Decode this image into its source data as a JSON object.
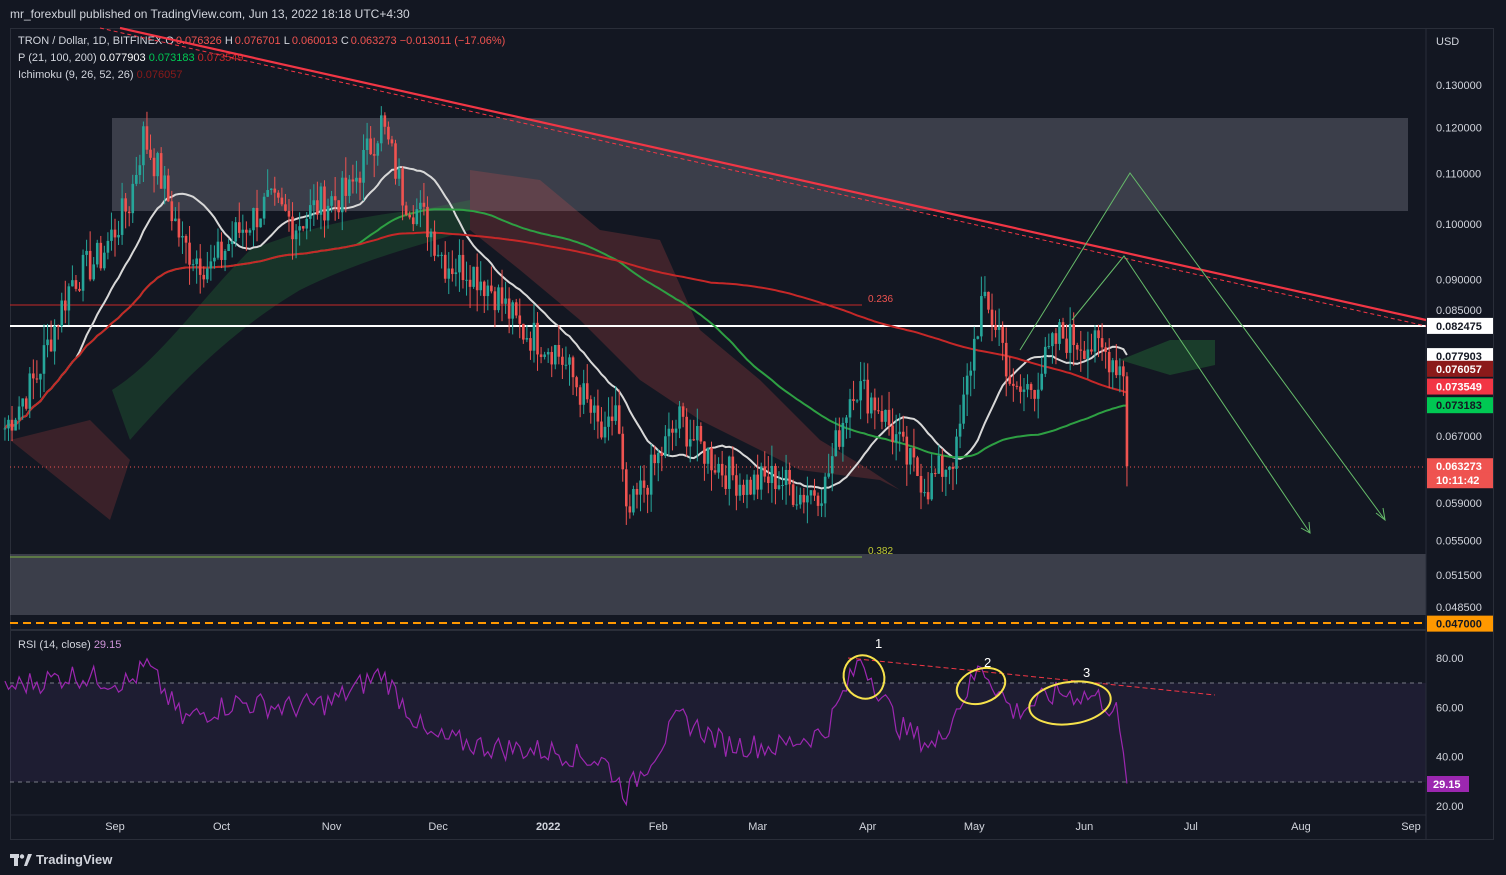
{
  "header": {
    "published": "mr_forexbull published on TradingView.com, Jun 13, 2022 18:18 UTC+4:30"
  },
  "legend": {
    "symbol_line": {
      "name": "TRON / Dollar, 1D, BITFINEX",
      "o_label": "O",
      "o_value": "0.076326",
      "h_label": "H",
      "h_value": "0.076701",
      "l_label": "L",
      "l_value": "0.060013",
      "c_label": "C",
      "c_value": "0.063273",
      "change": "−0.013011 (−17.06%)"
    },
    "ma_line": {
      "name": "P (21, 100, 200)",
      "v1": "0.077903",
      "v2": "0.073183",
      "v3": "0.073549"
    },
    "ichimoku_line": {
      "name": "Ichimoku (9, 26, 52, 26)",
      "v1": "0.076057"
    },
    "rsi_line": {
      "name": "RSI (14, close)",
      "v1": "29.15"
    }
  },
  "colors": {
    "background": "#131722",
    "grid": "#1e222d",
    "up": "#26a69a",
    "down": "#ef5350",
    "ma21": "#d8d8d8",
    "ma100": "#2ea043",
    "ma200": "#c62828",
    "trendline": "#f23645",
    "rsi": "#9c27b0",
    "zone": "rgba(120,123,134,0.42)",
    "accent_orange": "#ff9800",
    "annotation_yellow": "#f7e24b"
  },
  "price_axis": {
    "currency": "USD",
    "ticks": [
      "0.130000",
      "0.120000",
      "0.110000",
      "0.100000",
      "0.090000",
      "0.085000",
      "0.067000",
      "0.059000",
      "0.055000",
      "0.051500",
      "0.048500"
    ],
    "labels": [
      {
        "text": "0.082475",
        "bg": "#ffffff",
        "fg": "#131722"
      },
      {
        "text": "0.077903",
        "bg": "#ffffff",
        "fg": "#131722"
      },
      {
        "text": "0.076057",
        "bg": "#8b1a1a",
        "fg": "#ffffff"
      },
      {
        "text": "0.073549",
        "bg": "#f23645",
        "fg": "#ffffff"
      },
      {
        "text": "0.073183",
        "bg": "#00c853",
        "fg": "#131722"
      },
      {
        "text": "0.063273",
        "bg": "#ef5350",
        "fg": "#ffffff"
      },
      {
        "text": "10:11:42",
        "bg": "#ef5350",
        "fg": "#ffffff"
      },
      {
        "text": "0.047000",
        "bg": "#ff9800",
        "fg": "#131722"
      }
    ]
  },
  "rsi_axis": {
    "ticks": [
      "80.00",
      "60.00",
      "40.00",
      "20.00"
    ],
    "current": "29.15"
  },
  "time_axis": {
    "labels": [
      "Sep",
      "Oct",
      "Nov",
      "Dec",
      "2022",
      "Feb",
      "Mar",
      "Apr",
      "May",
      "Jun",
      "Jul",
      "Aug",
      "Sep"
    ]
  },
  "fib": {
    "upper": "0.236",
    "lower": "0.382"
  },
  "annotations": {
    "rsi_points": [
      "1",
      "2",
      "3"
    ]
  },
  "footer": {
    "brand": "TradingView"
  },
  "chart_data": {
    "type": "line",
    "title": "TRON / Dollar, 1D, BITFINEX",
    "ylabel": "USD",
    "ylim": [
      0.046,
      0.136
    ],
    "grid": true,
    "series": [
      {
        "name": "TRON / Dollar",
        "points": [
          [
            "2021-08-01",
            0.068
          ],
          [
            "2021-08-10",
            0.075
          ],
          [
            "2021-08-20",
            0.09
          ],
          [
            "2021-08-28",
            0.094
          ],
          [
            "2021-09-05",
            0.104
          ],
          [
            "2021-09-09",
            0.118
          ],
          [
            "2021-09-13",
            0.111
          ],
          [
            "2021-09-20",
            0.096
          ],
          [
            "2021-09-28",
            0.092
          ],
          [
            "2021-10-05",
            0.098
          ],
          [
            "2021-10-14",
            0.104
          ],
          [
            "2021-10-22",
            0.1
          ],
          [
            "2021-10-29",
            0.104
          ],
          [
            "2021-11-06",
            0.106
          ],
          [
            "2021-11-15",
            0.121
          ],
          [
            "2021-11-21",
            0.106
          ],
          [
            "2021-11-28",
            0.1
          ],
          [
            "2021-12-03",
            0.093
          ],
          [
            "2021-12-10",
            0.092
          ],
          [
            "2021-12-17",
            0.088
          ],
          [
            "2021-12-24",
            0.082
          ],
          [
            "2022-01-03",
            0.079
          ],
          [
            "2022-01-10",
            0.073
          ],
          [
            "2022-01-17",
            0.066
          ],
          [
            "2022-01-20",
            0.071
          ],
          [
            "2022-01-23",
            0.057
          ],
          [
            "2022-01-28",
            0.061
          ],
          [
            "2022-02-07",
            0.069
          ],
          [
            "2022-02-12",
            0.066
          ],
          [
            "2022-02-19",
            0.063
          ],
          [
            "2022-02-26",
            0.061
          ],
          [
            "2022-03-06",
            0.062
          ],
          [
            "2022-03-13",
            0.06
          ],
          [
            "2022-03-20",
            0.061
          ],
          [
            "2022-03-28",
            0.074
          ],
          [
            "2022-04-04",
            0.071
          ],
          [
            "2022-04-12",
            0.064
          ],
          [
            "2022-04-18",
            0.061
          ],
          [
            "2022-04-26",
            0.065
          ],
          [
            "2022-05-03",
            0.086
          ],
          [
            "2022-05-08",
            0.082
          ],
          [
            "2022-05-12",
            0.072
          ],
          [
            "2022-05-18",
            0.074
          ],
          [
            "2022-05-25",
            0.081
          ],
          [
            "2022-06-01",
            0.08
          ],
          [
            "2022-06-08",
            0.078
          ],
          [
            "2022-06-12",
            0.076
          ],
          [
            "2022-06-13",
            0.063
          ]
        ]
      },
      {
        "name": "RSI (14, close)",
        "points": [
          [
            "2021-08-01",
            68
          ],
          [
            "2021-08-20",
            73
          ],
          [
            "2021-09-05",
            70
          ],
          [
            "2021-09-10",
            77
          ],
          [
            "2021-09-20",
            55
          ],
          [
            "2021-10-05",
            62
          ],
          [
            "2021-10-20",
            60
          ],
          [
            "2021-11-01",
            62
          ],
          [
            "2021-11-15",
            74
          ],
          [
            "2021-11-28",
            48
          ],
          [
            "2021-12-15",
            44
          ],
          [
            "2022-01-03",
            42
          ],
          [
            "2022-01-17",
            38
          ],
          [
            "2022-01-23",
            25
          ],
          [
            "2022-02-07",
            56
          ],
          [
            "2022-02-20",
            45
          ],
          [
            "2022-03-06",
            44
          ],
          [
            "2022-03-20",
            50
          ],
          [
            "2022-03-30",
            80
          ],
          [
            "2022-04-10",
            52
          ],
          [
            "2022-04-20",
            44
          ],
          [
            "2022-05-03",
            77
          ],
          [
            "2022-05-12",
            58
          ],
          [
            "2022-05-25",
            66
          ],
          [
            "2022-06-05",
            64
          ],
          [
            "2022-06-10",
            58
          ],
          [
            "2022-06-13",
            29.15
          ]
        ]
      }
    ]
  }
}
